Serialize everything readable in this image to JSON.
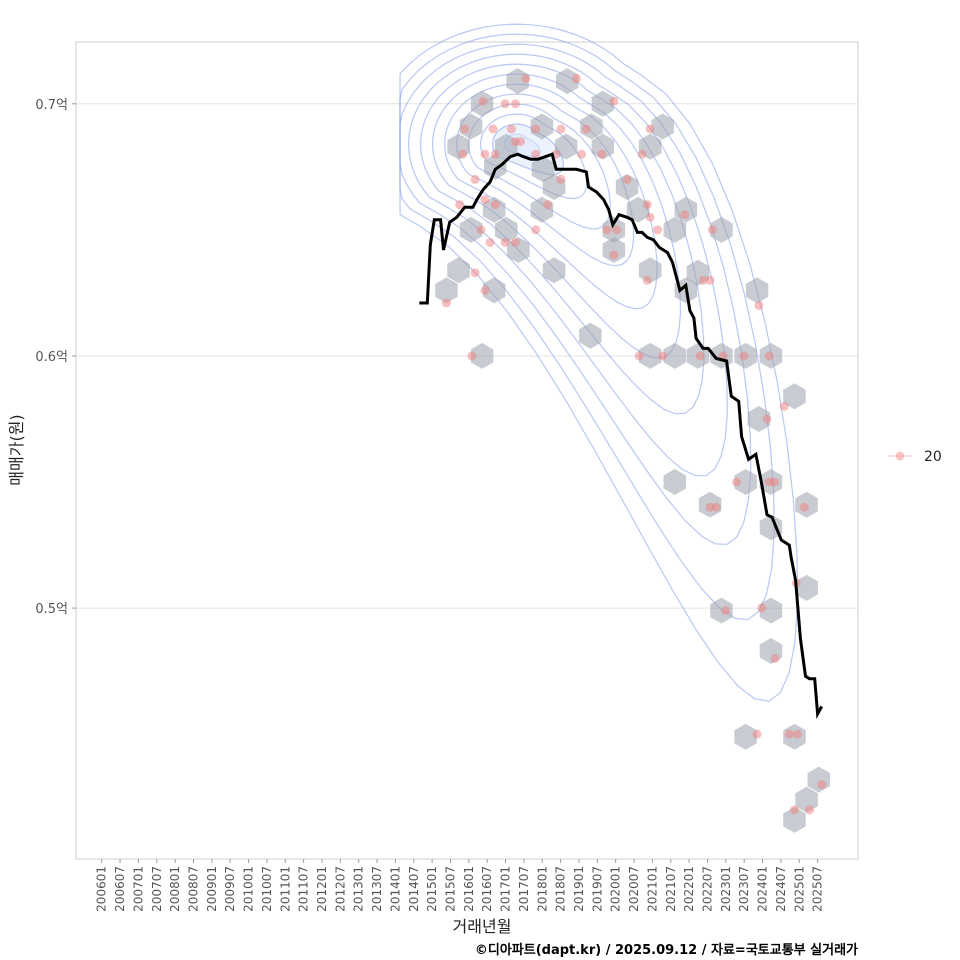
{
  "chart_data": {
    "type": "scatter",
    "title": "",
    "xlabel": "거래년월",
    "ylabel": "매매가(원)",
    "caption": "©디아파트(dapt.kr) / 2025.09.12 / 자료=국토교통부 실거래가",
    "xlim": [
      2005.3,
      2026.6
    ],
    "ylim": [
      0.4005,
      0.7245
    ],
    "grid": true,
    "legend": {
      "position": "right",
      "entries": [
        {
          "label": "20",
          "color": "#f08080"
        }
      ]
    },
    "y_ticks": [
      {
        "value": 0.5,
        "label": "0.5억"
      },
      {
        "value": 0.6,
        "label": "0.6억"
      },
      {
        "value": 0.7,
        "label": "0.7억"
      }
    ],
    "x_ticks": [
      "200601",
      "200607",
      "200701",
      "200707",
      "200801",
      "200807",
      "200901",
      "200907",
      "201001",
      "201007",
      "201101",
      "201107",
      "201201",
      "201207",
      "201301",
      "201307",
      "201401",
      "201407",
      "201501",
      "201507",
      "201601",
      "201607",
      "201701",
      "201707",
      "201801",
      "201807",
      "201901",
      "201907",
      "202001",
      "202007",
      "202101",
      "202107",
      "202201",
      "202207",
      "202301",
      "202307",
      "202401",
      "202407",
      "202501",
      "202507"
    ],
    "colors": {
      "points": "#f08080",
      "hex": "#9aa3ad",
      "contour": "#7f9be8",
      "line": "#000000"
    },
    "hexbins": [
      [
        2017.33,
        0.709
      ],
      [
        2018.68,
        0.709
      ],
      [
        2016.36,
        0.7
      ],
      [
        2019.65,
        0.7
      ],
      [
        2016.06,
        0.691
      ],
      [
        2017.99,
        0.691
      ],
      [
        2019.34,
        0.691
      ],
      [
        2021.28,
        0.691
      ],
      [
        2015.72,
        0.683
      ],
      [
        2017.02,
        0.683
      ],
      [
        2018.65,
        0.683
      ],
      [
        2019.65,
        0.683
      ],
      [
        2020.94,
        0.683
      ],
      [
        2016.72,
        0.675
      ],
      [
        2018.02,
        0.674
      ],
      [
        2018.32,
        0.667
      ],
      [
        2020.31,
        0.667
      ],
      [
        2016.69,
        0.658
      ],
      [
        2017.99,
        0.658
      ],
      [
        2020.61,
        0.658
      ],
      [
        2016.06,
        0.65
      ],
      [
        2017.02,
        0.65
      ],
      [
        2017.35,
        0.642
      ],
      [
        2019.95,
        0.65
      ],
      [
        2021.61,
        0.65
      ],
      [
        2021.91,
        0.658
      ],
      [
        2022.88,
        0.65
      ],
      [
        2019.95,
        0.642
      ],
      [
        2015.72,
        0.634
      ],
      [
        2018.32,
        0.634
      ],
      [
        2020.94,
        0.634
      ],
      [
        2022.24,
        0.633
      ],
      [
        2015.39,
        0.626
      ],
      [
        2016.69,
        0.626
      ],
      [
        2021.91,
        0.626
      ],
      [
        2023.85,
        0.626
      ],
      [
        2019.31,
        0.608
      ],
      [
        2016.36,
        0.6
      ],
      [
        2020.94,
        0.6
      ],
      [
        2021.61,
        0.6
      ],
      [
        2022.24,
        0.6
      ],
      [
        2022.88,
        0.6
      ],
      [
        2023.54,
        0.6
      ],
      [
        2024.23,
        0.6
      ],
      [
        2024.87,
        0.584
      ],
      [
        2023.9,
        0.575
      ],
      [
        2021.61,
        0.55
      ],
      [
        2022.57,
        0.541
      ],
      [
        2023.54,
        0.55
      ],
      [
        2024.23,
        0.55
      ],
      [
        2024.23,
        0.532
      ],
      [
        2025.2,
        0.541
      ],
      [
        2025.2,
        0.508
      ],
      [
        2022.88,
        0.499
      ],
      [
        2024.23,
        0.499
      ],
      [
        2024.23,
        0.483
      ],
      [
        2023.54,
        0.449
      ],
      [
        2024.87,
        0.449
      ],
      [
        2025.53,
        0.432
      ],
      [
        2025.2,
        0.424
      ],
      [
        2024.87,
        0.416
      ]
    ],
    "points": [
      [
        2016.08,
        0.6
      ],
      [
        2016.66,
        0.69
      ],
      [
        2016.39,
        0.701
      ],
      [
        2017.55,
        0.71
      ],
      [
        2018.93,
        0.71
      ],
      [
        2016.99,
        0.7
      ],
      [
        2017.27,
        0.7
      ],
      [
        2017.16,
        0.69
      ],
      [
        2017.27,
        0.685
      ],
      [
        2017.41,
        0.685
      ],
      [
        2016.44,
        0.68
      ],
      [
        2016.72,
        0.68
      ],
      [
        2015.89,
        0.69
      ],
      [
        2017.82,
        0.69
      ],
      [
        2018.51,
        0.69
      ],
      [
        2015.83,
        0.68
      ],
      [
        2016.17,
        0.67
      ],
      [
        2015.75,
        0.66
      ],
      [
        2016.44,
        0.662
      ],
      [
        2016.72,
        0.66
      ],
      [
        2016.33,
        0.65
      ],
      [
        2016.58,
        0.645
      ],
      [
        2016.99,
        0.645
      ],
      [
        2017.27,
        0.645
      ],
      [
        2017.82,
        0.65
      ],
      [
        2018.15,
        0.66
      ],
      [
        2016.44,
        0.626
      ],
      [
        2015.39,
        0.621
      ],
      [
        2016.17,
        0.633
      ],
      [
        2017.82,
        0.68
      ],
      [
        2018.38,
        0.68
      ],
      [
        2018.51,
        0.67
      ],
      [
        2019.2,
        0.69
      ],
      [
        2019.07,
        0.68
      ],
      [
        2019.62,
        0.68
      ],
      [
        2019.95,
        0.701
      ],
      [
        2020.72,
        0.68
      ],
      [
        2020.94,
        0.69
      ],
      [
        2020.31,
        0.67
      ],
      [
        2020.86,
        0.66
      ],
      [
        2020.94,
        0.655
      ],
      [
        2021.14,
        0.65
      ],
      [
        2020.03,
        0.65
      ],
      [
        2019.76,
        0.65
      ],
      [
        2019.95,
        0.64
      ],
      [
        2020.86,
        0.63
      ],
      [
        2021.88,
        0.656
      ],
      [
        2022.63,
        0.65
      ],
      [
        2020.64,
        0.6
      ],
      [
        2021.28,
        0.6
      ],
      [
        2022.3,
        0.6
      ],
      [
        2022.93,
        0.6
      ],
      [
        2023.49,
        0.6
      ],
      [
        2024.18,
        0.6
      ],
      [
        2022.57,
        0.63
      ],
      [
        2022.38,
        0.63
      ],
      [
        2023.9,
        0.62
      ],
      [
        2024.12,
        0.575
      ],
      [
        2024.59,
        0.58
      ],
      [
        2022.57,
        0.54
      ],
      [
        2022.74,
        0.54
      ],
      [
        2023.29,
        0.55
      ],
      [
        2024.18,
        0.55
      ],
      [
        2024.32,
        0.55
      ],
      [
        2022.99,
        0.499
      ],
      [
        2023.98,
        0.5
      ],
      [
        2024.34,
        0.48
      ],
      [
        2025.14,
        0.54
      ],
      [
        2024.92,
        0.51
      ],
      [
        2023.85,
        0.45
      ],
      [
        2024.73,
        0.45
      ],
      [
        2024.95,
        0.45
      ],
      [
        2024.87,
        0.42
      ],
      [
        2025.28,
        0.42
      ],
      [
        2025.61,
        0.43
      ]
    ],
    "moving_average": [
      [
        2014.65,
        0.621
      ],
      [
        2014.87,
        0.621
      ],
      [
        2014.95,
        0.644
      ],
      [
        2015.06,
        0.654
      ],
      [
        2015.23,
        0.654
      ],
      [
        2015.31,
        0.642
      ],
      [
        2015.48,
        0.653
      ],
      [
        2015.67,
        0.655
      ],
      [
        2015.89,
        0.659
      ],
      [
        2016.11,
        0.659
      ],
      [
        2016.22,
        0.662
      ],
      [
        2016.39,
        0.666
      ],
      [
        2016.58,
        0.669
      ],
      [
        2016.72,
        0.674
      ],
      [
        2016.91,
        0.676
      ],
      [
        2017.13,
        0.679
      ],
      [
        2017.33,
        0.68
      ],
      [
        2017.49,
        0.679
      ],
      [
        2017.69,
        0.678
      ],
      [
        2017.88,
        0.678
      ],
      [
        2018.27,
        0.68
      ],
      [
        2018.38,
        0.674
      ],
      [
        2018.65,
        0.674
      ],
      [
        2018.93,
        0.674
      ],
      [
        2019.2,
        0.673
      ],
      [
        2019.26,
        0.667
      ],
      [
        2019.48,
        0.665
      ],
      [
        2019.67,
        0.662
      ],
      [
        2019.81,
        0.658
      ],
      [
        2019.92,
        0.652
      ],
      [
        2020.09,
        0.656
      ],
      [
        2020.31,
        0.655
      ],
      [
        2020.45,
        0.654
      ],
      [
        2020.59,
        0.649
      ],
      [
        2020.72,
        0.649
      ],
      [
        2020.86,
        0.647
      ],
      [
        2021.03,
        0.646
      ],
      [
        2021.19,
        0.643
      ],
      [
        2021.41,
        0.641
      ],
      [
        2021.55,
        0.637
      ],
      [
        2021.75,
        0.626
      ],
      [
        2021.91,
        0.628
      ],
      [
        2022.02,
        0.618
      ],
      [
        2022.13,
        0.615
      ],
      [
        2022.19,
        0.607
      ],
      [
        2022.38,
        0.603
      ],
      [
        2022.52,
        0.603
      ],
      [
        2022.63,
        0.601
      ],
      [
        2022.74,
        0.599
      ],
      [
        2023.02,
        0.598
      ],
      [
        2023.15,
        0.584
      ],
      [
        2023.35,
        0.582
      ],
      [
        2023.43,
        0.568
      ],
      [
        2023.62,
        0.559
      ],
      [
        2023.82,
        0.561
      ],
      [
        2023.98,
        0.549
      ],
      [
        2024.12,
        0.537
      ],
      [
        2024.26,
        0.536
      ],
      [
        2024.4,
        0.531
      ],
      [
        2024.51,
        0.527
      ],
      [
        2024.73,
        0.525
      ],
      [
        2024.78,
        0.52
      ],
      [
        2024.9,
        0.511
      ],
      [
        2025.03,
        0.488
      ],
      [
        2025.17,
        0.473
      ],
      [
        2025.28,
        0.472
      ],
      [
        2025.42,
        0.472
      ],
      [
        2025.5,
        0.458
      ],
      [
        2025.61,
        0.461
      ]
    ],
    "density_center": [
      2017.3,
      0.684
    ]
  }
}
